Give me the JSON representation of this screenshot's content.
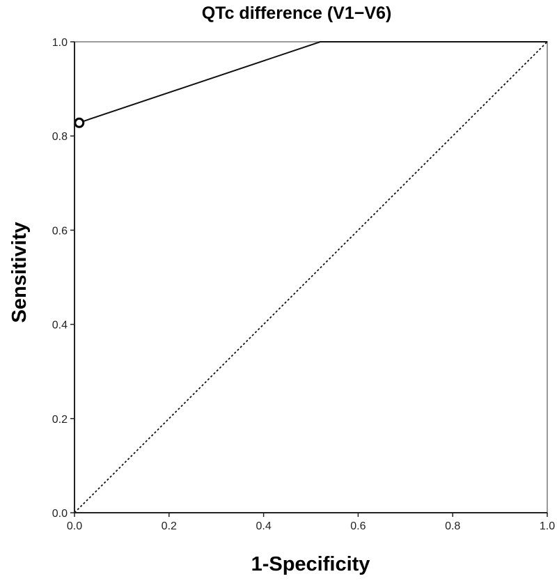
{
  "chart_data": {
    "type": "line",
    "title": "QTc difference (V1−V6)",
    "xlabel": "1-Specificity",
    "ylabel": "Sensitivity",
    "xlim": [
      0.0,
      1.0
    ],
    "ylim": [
      0.0,
      1.0
    ],
    "xticks": [
      "0.0",
      "0.2",
      "0.4",
      "0.6",
      "0.8",
      "1.0"
    ],
    "yticks": [
      "0.0",
      "0.2",
      "0.4",
      "0.6",
      "0.8",
      "1.0"
    ],
    "grid": false,
    "series": [
      {
        "style": "solid",
        "color": "#111111",
        "x": [
          0.0,
          0.0,
          0.0,
          0.52,
          1.0
        ],
        "y": [
          0.0,
          0.825,
          0.825,
          1.0,
          1.0
        ]
      },
      {
        "style": "dotted",
        "color": "#111111",
        "x": [
          0.0,
          1.0
        ],
        "y": [
          0.0,
          1.0
        ]
      }
    ],
    "markers": [
      {
        "shape": "open-circle",
        "x": 0.01,
        "y": 0.828
      }
    ]
  }
}
